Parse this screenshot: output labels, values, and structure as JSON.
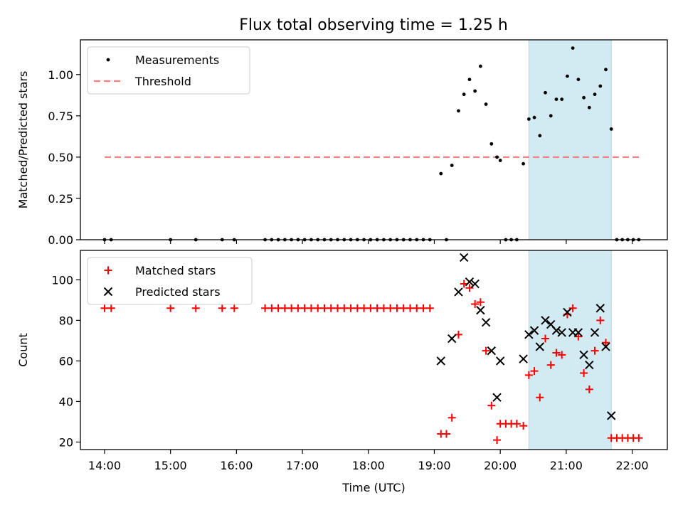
{
  "figure": {
    "title": "Flux total observing time = 1.25 h"
  },
  "chart_data": [
    {
      "type": "scatter",
      "panel": "top",
      "title": "Flux total observing time = 1.25 h",
      "ylabel": "Matched/Predicted stars",
      "xlabel": "",
      "xlim": [
        "13:38",
        "22:32"
      ],
      "ylim": [
        0.0,
        1.21
      ],
      "xticks": [
        "14:00",
        "15:00",
        "16:00",
        "17:00",
        "18:00",
        "19:00",
        "20:00",
        "21:00",
        "22:00"
      ],
      "yticks": [
        "0.00",
        "0.25",
        "0.50",
        "0.75",
        "1.00"
      ],
      "legend": {
        "placement": "upper left",
        "entries": [
          "Measurements",
          "Threshold"
        ]
      },
      "shaded_interval": {
        "start": "20:26",
        "end": "21:41",
        "color": "#add8e6"
      },
      "threshold": {
        "name": "Threshold",
        "value": 0.5,
        "x_range": [
          "14:00",
          "22:07"
        ],
        "color": "#ff7f7f",
        "style": "dashed"
      },
      "series": [
        {
          "name": "Measurements",
          "color": "#000000",
          "marker": "dot",
          "points": [
            [
              "14:00",
              0.0
            ],
            [
              "14:06",
              0.0
            ],
            [
              "15:00",
              0.0
            ],
            [
              "15:23",
              0.0
            ],
            [
              "15:47",
              0.0
            ],
            [
              "15:58",
              0.0
            ],
            [
              "16:26",
              0.0
            ],
            [
              "16:32",
              0.0
            ],
            [
              "16:38",
              0.0
            ],
            [
              "16:44",
              0.0
            ],
            [
              "16:50",
              0.0
            ],
            [
              "16:56",
              0.0
            ],
            [
              "17:02",
              0.0
            ],
            [
              "17:08",
              0.0
            ],
            [
              "17:14",
              0.0
            ],
            [
              "17:20",
              0.0
            ],
            [
              "17:26",
              0.0
            ],
            [
              "17:32",
              0.0
            ],
            [
              "17:38",
              0.0
            ],
            [
              "17:44",
              0.0
            ],
            [
              "17:50",
              0.0
            ],
            [
              "17:56",
              0.0
            ],
            [
              "18:02",
              0.0
            ],
            [
              "18:08",
              0.0
            ],
            [
              "18:14",
              0.0
            ],
            [
              "18:20",
              0.0
            ],
            [
              "18:26",
              0.0
            ],
            [
              "18:32",
              0.0
            ],
            [
              "18:38",
              0.0
            ],
            [
              "18:44",
              0.0
            ],
            [
              "18:50",
              0.0
            ],
            [
              "18:56",
              0.0
            ],
            [
              "19:06",
              0.4
            ],
            [
              "19:11",
              0.0
            ],
            [
              "19:16",
              0.45
            ],
            [
              "19:22",
              0.78
            ],
            [
              "19:27",
              0.88
            ],
            [
              "19:32",
              0.97
            ],
            [
              "19:37",
              0.9
            ],
            [
              "19:42",
              1.05
            ],
            [
              "19:47",
              0.82
            ],
            [
              "19:52",
              0.58
            ],
            [
              "19:57",
              0.5
            ],
            [
              "20:00",
              0.48
            ],
            [
              "20:05",
              0.0
            ],
            [
              "20:10",
              0.0
            ],
            [
              "20:15",
              0.0
            ],
            [
              "20:21",
              0.46
            ],
            [
              "20:26",
              0.73
            ],
            [
              "20:31",
              0.74
            ],
            [
              "20:36",
              0.63
            ],
            [
              "20:41",
              0.89
            ],
            [
              "20:46",
              0.75
            ],
            [
              "20:51",
              0.85
            ],
            [
              "20:56",
              0.85
            ],
            [
              "21:01",
              0.99
            ],
            [
              "21:06",
              1.16
            ],
            [
              "21:11",
              0.97
            ],
            [
              "21:16",
              0.86
            ],
            [
              "21:21",
              0.8
            ],
            [
              "21:26",
              0.88
            ],
            [
              "21:31",
              0.93
            ],
            [
              "21:36",
              1.03
            ],
            [
              "21:41",
              0.67
            ],
            [
              "21:46",
              0.0
            ],
            [
              "21:51",
              0.0
            ],
            [
              "21:56",
              0.0
            ],
            [
              "22:01",
              0.0
            ],
            [
              "22:06",
              0.0
            ]
          ]
        }
      ]
    },
    {
      "type": "scatter",
      "panel": "bottom",
      "title": "",
      "ylabel": "Count",
      "xlabel": "Time (UTC)",
      "xlim": [
        "13:38",
        "22:32"
      ],
      "ylim": [
        16.3,
        114.5
      ],
      "xticks": [
        "14:00",
        "15:00",
        "16:00",
        "17:00",
        "18:00",
        "19:00",
        "20:00",
        "21:00",
        "22:00"
      ],
      "yticks": [
        "20",
        "40",
        "60",
        "80",
        "100"
      ],
      "legend": {
        "placement": "upper left",
        "entries": [
          "Matched stars",
          "Predicted stars"
        ]
      },
      "shaded_interval": {
        "start": "20:26",
        "end": "21:41",
        "color": "#add8e6"
      },
      "series": [
        {
          "name": "Matched stars",
          "color": "#ff0000",
          "marker": "plus",
          "points": [
            [
              "14:00",
              86
            ],
            [
              "14:06",
              86
            ],
            [
              "15:00",
              86
            ],
            [
              "15:23",
              86
            ],
            [
              "15:47",
              86
            ],
            [
              "15:58",
              86
            ],
            [
              "16:26",
              86
            ],
            [
              "16:32",
              86
            ],
            [
              "16:38",
              86
            ],
            [
              "16:44",
              86
            ],
            [
              "16:50",
              86
            ],
            [
              "16:56",
              86
            ],
            [
              "17:02",
              86
            ],
            [
              "17:08",
              86
            ],
            [
              "17:14",
              86
            ],
            [
              "17:20",
              86
            ],
            [
              "17:26",
              86
            ],
            [
              "17:32",
              86
            ],
            [
              "17:38",
              86
            ],
            [
              "17:44",
              86
            ],
            [
              "17:50",
              86
            ],
            [
              "17:56",
              86
            ],
            [
              "18:02",
              86
            ],
            [
              "18:08",
              86
            ],
            [
              "18:14",
              86
            ],
            [
              "18:20",
              86
            ],
            [
              "18:26",
              86
            ],
            [
              "18:32",
              86
            ],
            [
              "18:38",
              86
            ],
            [
              "18:44",
              86
            ],
            [
              "18:50",
              86
            ],
            [
              "18:56",
              86
            ],
            [
              "19:06",
              24
            ],
            [
              "19:11",
              24
            ],
            [
              "19:16",
              32
            ],
            [
              "19:22",
              73
            ],
            [
              "19:27",
              98
            ],
            [
              "19:32",
              96
            ],
            [
              "19:37",
              88
            ],
            [
              "19:42",
              89
            ],
            [
              "19:47",
              65
            ],
            [
              "19:52",
              38
            ],
            [
              "19:57",
              21
            ],
            [
              "20:00",
              29
            ],
            [
              "20:05",
              29
            ],
            [
              "20:10",
              29
            ],
            [
              "20:15",
              29
            ],
            [
              "20:21",
              28
            ],
            [
              "20:26",
              53
            ],
            [
              "20:31",
              55
            ],
            [
              "20:36",
              42
            ],
            [
              "20:41",
              71
            ],
            [
              "20:46",
              58
            ],
            [
              "20:51",
              64
            ],
            [
              "20:56",
              63
            ],
            [
              "21:01",
              83
            ],
            [
              "21:06",
              86
            ],
            [
              "21:11",
              72
            ],
            [
              "21:16",
              54
            ],
            [
              "21:21",
              46
            ],
            [
              "21:26",
              65
            ],
            [
              "21:31",
              80
            ],
            [
              "21:36",
              69
            ],
            [
              "21:41",
              22
            ],
            [
              "21:46",
              22
            ],
            [
              "21:51",
              22
            ],
            [
              "21:56",
              22
            ],
            [
              "22:01",
              22
            ],
            [
              "22:06",
              22
            ]
          ]
        },
        {
          "name": "Predicted stars",
          "color": "#000000",
          "marker": "x",
          "points": [
            [
              "19:06",
              60
            ],
            [
              "19:16",
              71
            ],
            [
              "19:22",
              94
            ],
            [
              "19:27",
              111
            ],
            [
              "19:32",
              99
            ],
            [
              "19:37",
              98
            ],
            [
              "19:42",
              85
            ],
            [
              "19:47",
              79
            ],
            [
              "19:52",
              65
            ],
            [
              "19:57",
              42
            ],
            [
              "20:00",
              60
            ],
            [
              "20:21",
              61
            ],
            [
              "20:26",
              73
            ],
            [
              "20:31",
              75
            ],
            [
              "20:36",
              67
            ],
            [
              "20:41",
              80
            ],
            [
              "20:46",
              78
            ],
            [
              "20:51",
              75
            ],
            [
              "20:56",
              74
            ],
            [
              "21:01",
              84
            ],
            [
              "21:06",
              74
            ],
            [
              "21:11",
              74
            ],
            [
              "21:16",
              63
            ],
            [
              "21:21",
              58
            ],
            [
              "21:26",
              74
            ],
            [
              "21:31",
              86
            ],
            [
              "21:36",
              67
            ],
            [
              "21:41",
              33
            ]
          ]
        }
      ]
    }
  ]
}
